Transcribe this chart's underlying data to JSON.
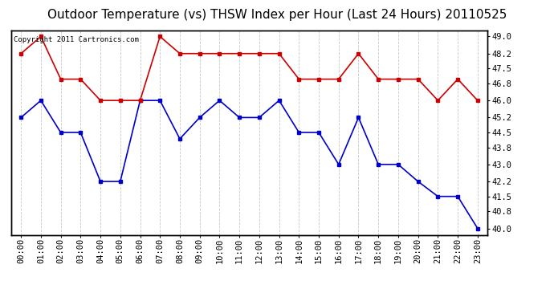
{
  "title": "Outdoor Temperature (vs) THSW Index per Hour (Last 24 Hours) 20110525",
  "copyright_text": "Copyright 2011 Cartronics.com",
  "x_labels": [
    "00:00",
    "01:00",
    "02:00",
    "03:00",
    "04:00",
    "05:00",
    "06:00",
    "07:00",
    "08:00",
    "09:00",
    "10:00",
    "11:00",
    "12:00",
    "13:00",
    "14:00",
    "15:00",
    "16:00",
    "17:00",
    "18:00",
    "19:00",
    "20:00",
    "21:00",
    "22:00",
    "23:00"
  ],
  "blue_data": [
    45.2,
    46.0,
    44.5,
    44.5,
    42.2,
    42.2,
    46.0,
    46.0,
    44.2,
    45.2,
    46.0,
    45.2,
    45.2,
    46.0,
    44.5,
    44.5,
    43.0,
    45.2,
    43.0,
    43.0,
    42.2,
    41.5,
    41.5,
    40.0
  ],
  "red_data": [
    48.2,
    49.0,
    47.0,
    47.0,
    46.0,
    46.0,
    46.0,
    49.0,
    48.2,
    48.2,
    48.2,
    48.2,
    48.2,
    48.2,
    47.0,
    47.0,
    47.0,
    48.2,
    47.0,
    47.0,
    47.0,
    46.0,
    47.0,
    46.0
  ],
  "ylim": [
    39.7,
    49.3
  ],
  "yticks_right": [
    40.0,
    40.8,
    41.5,
    42.2,
    43.0,
    43.8,
    44.5,
    45.2,
    46.0,
    46.8,
    47.5,
    48.2,
    49.0
  ],
  "bg_color": "#ffffff",
  "plot_bg_color": "#ffffff",
  "grid_color": "#c0c0c0",
  "blue_color": "#0000cc",
  "red_color": "#cc0000",
  "title_fontsize": 11,
  "tick_fontsize": 7.5,
  "copyright_fontsize": 6.5
}
